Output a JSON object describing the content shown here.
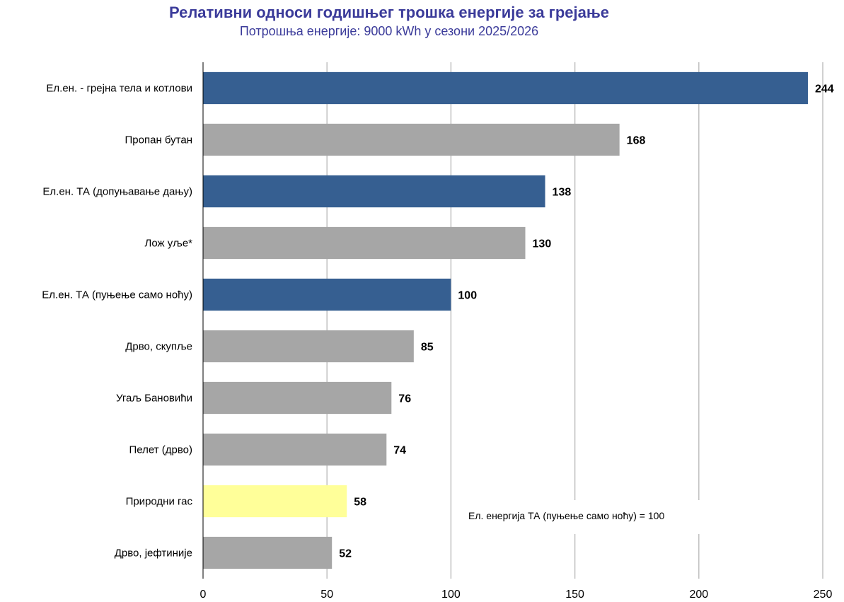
{
  "chart_data": {
    "type": "bar",
    "orientation": "horizontal",
    "title": "Релативни односи годишњег трошка енергије за грејање",
    "subtitle": "Потрошња енергије: 9000 kWh у сезони 2025/2026",
    "categories": [
      "Ел.ен. - грејна тела и котлови",
      "Пропан бутан",
      "Ел.ен. ТА (допуњавање дању)",
      "Лож уље*",
      "Ел.ен. ТА (пуњење само ноћу)",
      "Дрво, скупље",
      "Угаљ Бановићи",
      "Пелет (дрво)",
      "Природни гас",
      "Дрво, јефтиније"
    ],
    "values": [
      244,
      168,
      138,
      130,
      100,
      85,
      76,
      74,
      58,
      52
    ],
    "bar_colors": [
      "#365f91",
      "#a6a6a6",
      "#365f91",
      "#a6a6a6",
      "#365f91",
      "#a6a6a6",
      "#a6a6a6",
      "#a6a6a6",
      "#ffff99",
      "#a6a6a6"
    ],
    "xlim": [
      0,
      250
    ],
    "xticks": [
      0,
      50,
      100,
      150,
      200,
      250
    ],
    "grid": "vertical",
    "annotation": "Ел. енергија ТА (пуњење само ноћу) = 100",
    "xlabel": "",
    "ylabel": ""
  },
  "colors": {
    "title": "#3b3b9a",
    "grid": "#c0c0c0",
    "axis": "#000000"
  }
}
